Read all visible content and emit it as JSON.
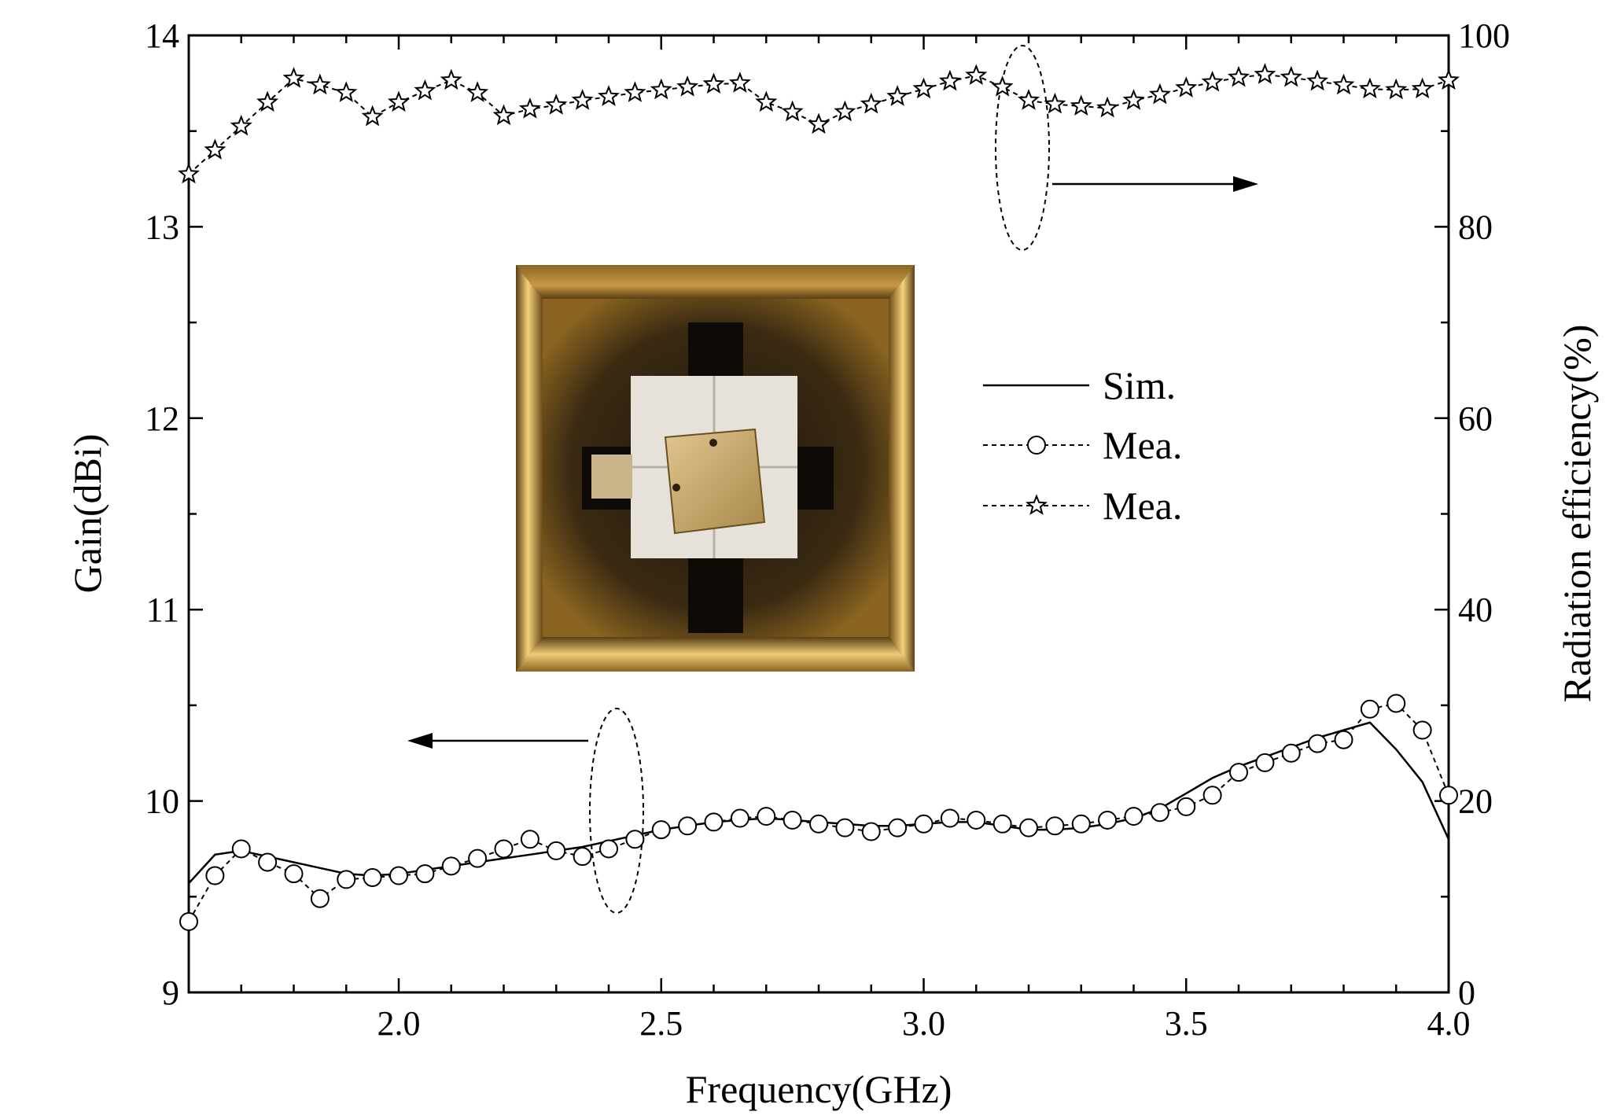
{
  "chart_data": {
    "type": "line",
    "title": "",
    "xlabel": "Frequency(GHz)",
    "ylabel_left": "Gain(dBi)",
    "ylabel_right": "Radiation efficiency(%)",
    "xlim": [
      1.6,
      4.0
    ],
    "ylim_left": [
      9,
      14
    ],
    "ylim_right": [
      0,
      100
    ],
    "x_ticks": [
      2.0,
      2.5,
      3.0,
      3.5,
      4.0
    ],
    "x_tick_labels": [
      "2.0",
      "2.5",
      "3.0",
      "3.5",
      "4.0"
    ],
    "y_left_ticks": [
      9,
      10,
      11,
      12,
      13,
      14
    ],
    "y_left_tick_labels": [
      "9",
      "10",
      "11",
      "12",
      "13",
      "14"
    ],
    "y_right_ticks": [
      0,
      20,
      40,
      60,
      80,
      100
    ],
    "y_right_tick_labels": [
      "0",
      "20",
      "40",
      "60",
      "80",
      "100"
    ],
    "grid": false,
    "legend_position": "center-right",
    "series": [
      {
        "name": "Sim.",
        "axis": "left",
        "style": "solid",
        "marker": "none",
        "x": [
          1.6,
          1.65,
          1.7,
          1.75,
          1.8,
          1.85,
          1.9,
          1.95,
          2.0,
          2.05,
          2.1,
          2.15,
          2.2,
          2.25,
          2.3,
          2.35,
          2.4,
          2.45,
          2.5,
          2.55,
          2.6,
          2.65,
          2.7,
          2.75,
          2.8,
          2.85,
          2.9,
          2.95,
          3.0,
          3.05,
          3.1,
          3.15,
          3.2,
          3.25,
          3.3,
          3.35,
          3.4,
          3.45,
          3.5,
          3.55,
          3.6,
          3.65,
          3.7,
          3.75,
          3.8,
          3.85,
          3.9,
          3.95,
          4.0
        ],
        "values": [
          9.57,
          9.72,
          9.74,
          9.71,
          9.68,
          9.65,
          9.62,
          9.61,
          9.62,
          9.64,
          9.66,
          9.68,
          9.7,
          9.72,
          9.74,
          9.76,
          9.79,
          9.82,
          9.85,
          9.87,
          9.89,
          9.9,
          9.91,
          9.9,
          9.89,
          9.88,
          9.87,
          9.87,
          9.88,
          9.89,
          9.89,
          9.87,
          9.85,
          9.85,
          9.86,
          9.88,
          9.91,
          9.96,
          10.04,
          10.12,
          10.18,
          10.23,
          10.28,
          10.33,
          10.37,
          10.41,
          10.27,
          10.1,
          9.8
        ]
      },
      {
        "name": "Mea.",
        "axis": "left",
        "style": "dashed",
        "marker": "circle",
        "x": [
          1.6,
          1.65,
          1.7,
          1.75,
          1.8,
          1.85,
          1.9,
          1.95,
          2.0,
          2.05,
          2.1,
          2.15,
          2.2,
          2.25,
          2.3,
          2.35,
          2.4,
          2.45,
          2.5,
          2.55,
          2.6,
          2.65,
          2.7,
          2.75,
          2.8,
          2.85,
          2.9,
          2.95,
          3.0,
          3.05,
          3.1,
          3.15,
          3.2,
          3.25,
          3.3,
          3.35,
          3.4,
          3.45,
          3.5,
          3.55,
          3.6,
          3.65,
          3.7,
          3.75,
          3.8,
          3.85,
          3.9,
          3.95,
          4.0
        ],
        "values": [
          9.37,
          9.61,
          9.75,
          9.68,
          9.62,
          9.49,
          9.59,
          9.6,
          9.61,
          9.62,
          9.66,
          9.7,
          9.75,
          9.8,
          9.74,
          9.71,
          9.75,
          9.8,
          9.85,
          9.87,
          9.89,
          9.91,
          9.92,
          9.9,
          9.88,
          9.86,
          9.84,
          9.86,
          9.88,
          9.91,
          9.9,
          9.88,
          9.86,
          9.87,
          9.88,
          9.9,
          9.92,
          9.94,
          9.97,
          10.03,
          10.15,
          10.2,
          10.25,
          10.3,
          10.32,
          10.48,
          10.51,
          10.37,
          10.03
        ]
      },
      {
        "name": "Mea.",
        "axis": "right",
        "style": "dashed",
        "marker": "star",
        "x": [
          1.6,
          1.65,
          1.7,
          1.75,
          1.8,
          1.85,
          1.9,
          1.95,
          2.0,
          2.05,
          2.1,
          2.15,
          2.2,
          2.25,
          2.3,
          2.35,
          2.4,
          2.45,
          2.5,
          2.55,
          2.6,
          2.65,
          2.7,
          2.75,
          2.8,
          2.85,
          2.9,
          2.95,
          3.0,
          3.05,
          3.1,
          3.15,
          3.2,
          3.25,
          3.3,
          3.35,
          3.4,
          3.45,
          3.5,
          3.55,
          3.6,
          3.65,
          3.7,
          3.75,
          3.8,
          3.85,
          3.9,
          3.95,
          4.0
        ],
        "values": [
          85.5,
          88.0,
          90.5,
          93.0,
          95.5,
          94.8,
          94.0,
          91.5,
          93.0,
          94.2,
          95.3,
          94.0,
          91.6,
          92.3,
          92.7,
          93.2,
          93.6,
          94.0,
          94.3,
          94.6,
          94.9,
          95.0,
          93.0,
          92.0,
          90.7,
          92.0,
          92.8,
          93.6,
          94.4,
          95.2,
          95.8,
          94.6,
          93.2,
          92.8,
          92.6,
          92.4,
          93.2,
          93.8,
          94.5,
          95.1,
          95.6,
          95.9,
          95.6,
          95.2,
          94.8,
          94.4,
          94.3,
          94.4,
          95.3
        ]
      }
    ],
    "legend": [
      {
        "label": "Sim.",
        "style": "solid",
        "marker": "none"
      },
      {
        "label": "Mea.",
        "style": "dashed",
        "marker": "circle"
      },
      {
        "label": "Mea.",
        "style": "dashed",
        "marker": "star"
      }
    ],
    "annotations": [
      {
        "type": "ellipse-arrow",
        "target": "right-axis",
        "near_x": 3.18,
        "near_value": 90
      },
      {
        "type": "ellipse-arrow",
        "target": "left-axis",
        "near_x": 2.4,
        "near_value": 9.8
      }
    ],
    "inset_photo": {
      "description_kind": "photo",
      "colors": {
        "frame": "#a87a2a",
        "metal": "#d8b87a",
        "dark": "#2a1e10",
        "pad": "#e8e4dc"
      }
    }
  }
}
